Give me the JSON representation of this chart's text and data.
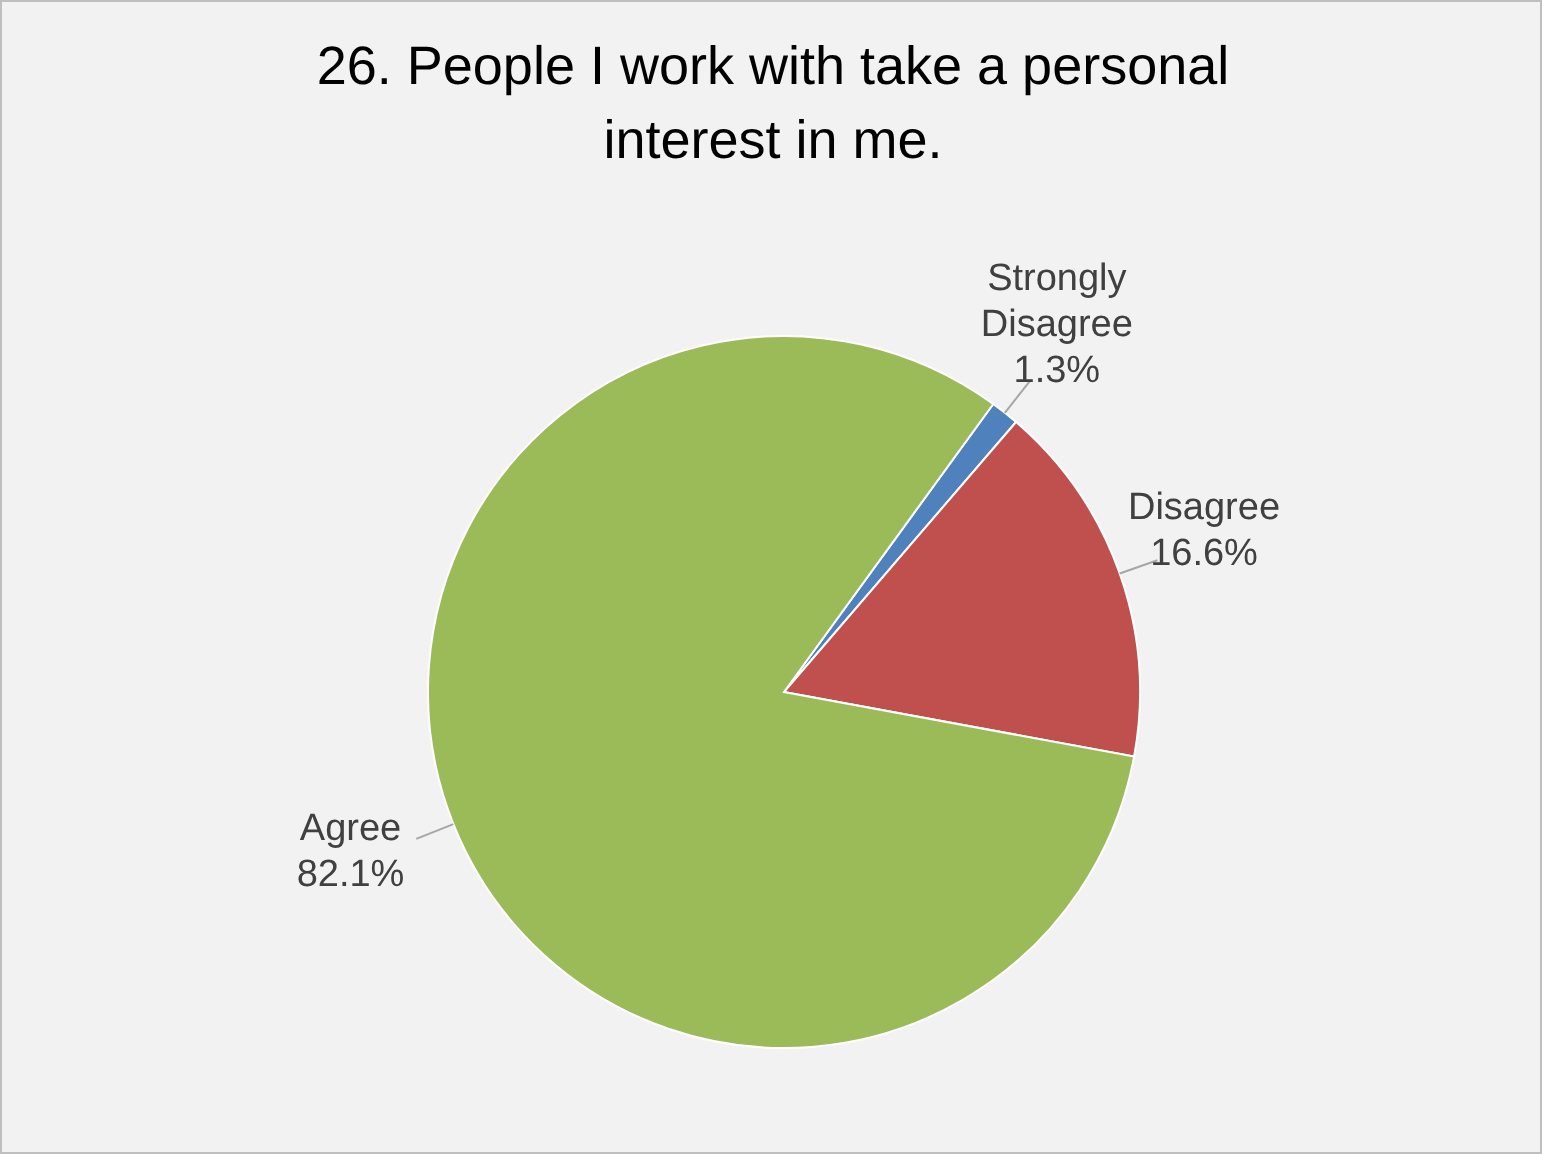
{
  "chart_data": {
    "type": "pie",
    "title": "26. People I work with take a personal interest in me.",
    "categories": [
      "Strongly Disagree",
      "Disagree",
      "Agree"
    ],
    "values": [
      1.3,
      16.6,
      82.1
    ],
    "colors": [
      "#4f81bd",
      "#c0504d",
      "#9bbb59"
    ],
    "value_labels": [
      "1.3%",
      "16.6%",
      "82.1%"
    ],
    "legend": false
  }
}
